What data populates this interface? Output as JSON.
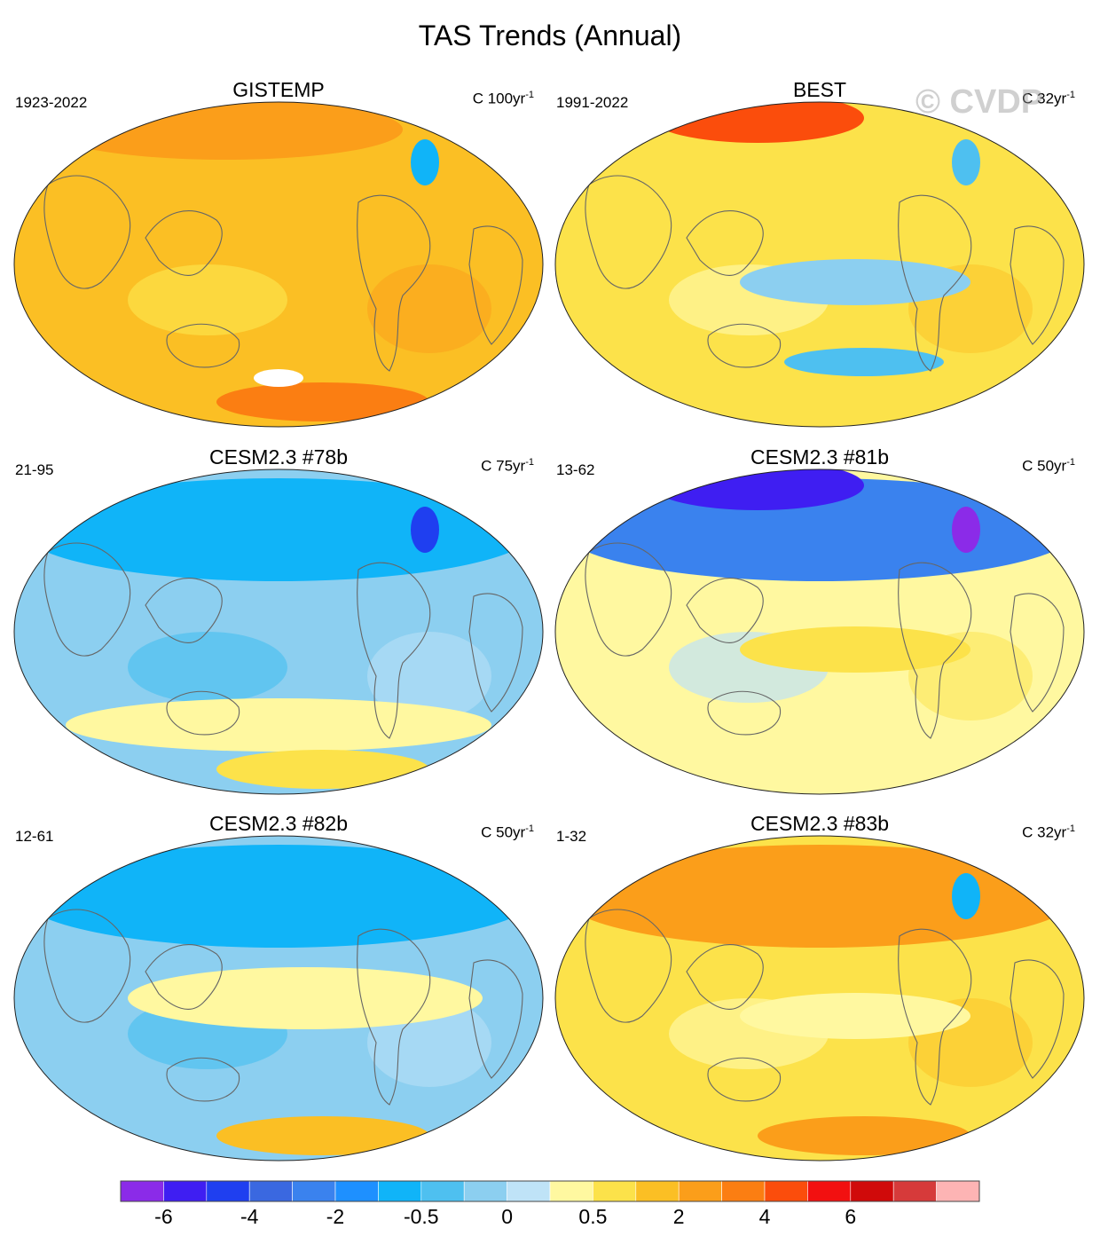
{
  "title": "TAS Trends (Annual)",
  "watermark": "© CVDP",
  "panels": [
    {
      "title": "GISTEMP",
      "period": "1923-2022",
      "units": "C 100yr",
      "units_exp": "-1",
      "dominant_level": 12,
      "features": [
        {
          "pos": "arctic",
          "level": 13
        },
        {
          "pos": "greenland",
          "level": 6
        },
        {
          "pos": "antarctic",
          "level": 14
        },
        {
          "pos": "ant-missing",
          "level": -1
        }
      ]
    },
    {
      "title": "BEST",
      "period": "1991-2022",
      "units": "C 32yr",
      "units_exp": "-1",
      "dominant_level": 11,
      "features": [
        {
          "pos": "siberia",
          "level": 15
        },
        {
          "pos": "tropical-pacific",
          "level": 8
        },
        {
          "pos": "southern-ocean",
          "level": 7
        },
        {
          "pos": "greenland",
          "level": 7
        }
      ]
    },
    {
      "title": "CESM2.3 #78b",
      "period": "21-95",
      "units": "C 75yr",
      "units_exp": "-1",
      "dominant_level": 8,
      "features": [
        {
          "pos": "north",
          "level": 6
        },
        {
          "pos": "greenland",
          "level": 2
        },
        {
          "pos": "southern-band",
          "level": 10
        },
        {
          "pos": "antarctic",
          "level": 11
        }
      ]
    },
    {
      "title": "CESM2.3 #81b",
      "period": "13-62",
      "units": "C 50yr",
      "units_exp": "-1",
      "dominant_level": 10,
      "features": [
        {
          "pos": "north",
          "level": 4
        },
        {
          "pos": "siberia",
          "level": 1
        },
        {
          "pos": "greenland",
          "level": 0
        },
        {
          "pos": "tropical-pacific",
          "level": 11
        }
      ]
    },
    {
      "title": "CESM2.3 #82b",
      "period": "12-61",
      "units": "C 50yr",
      "units_exp": "-1",
      "dominant_level": 8,
      "features": [
        {
          "pos": "north",
          "level": 6
        },
        {
          "pos": "mid-band",
          "level": 10
        },
        {
          "pos": "antarctic",
          "level": 12
        }
      ]
    },
    {
      "title": "CESM2.3 #83b",
      "period": "1-32",
      "units": "C 32yr",
      "units_exp": "-1",
      "dominant_level": 11,
      "features": [
        {
          "pos": "north",
          "level": 13
        },
        {
          "pos": "greenland",
          "level": 6
        },
        {
          "pos": "tropical-pacific",
          "level": 10
        },
        {
          "pos": "antarctic",
          "level": 13
        }
      ]
    }
  ],
  "chart_data": {
    "type": "heatmap",
    "title": "TAS Trends (Annual)",
    "variable": "TAS",
    "colorbar": {
      "tick_labels": [
        "-6",
        "-4",
        "-2",
        "-0.5",
        "0",
        "0.5",
        "2",
        "4",
        "6"
      ],
      "tick_after_bin": [
        1,
        3,
        5,
        7,
        9,
        11,
        13,
        15,
        17
      ],
      "colors": [
        "#8b2be8",
        "#3f1ef2",
        "#1f3ff0",
        "#3a68e0",
        "#3a82ee",
        "#1e90ff",
        "#10b4f8",
        "#4ec0f0",
        "#8ccff0",
        "#bfe3f7",
        "#fff8a0",
        "#fce24a",
        "#fbbf24",
        "#fb9e1a",
        "#fb7e12",
        "#fb4d0c",
        "#f21010",
        "#d00a0a",
        "#d63a3a",
        "#fdb4b4"
      ]
    },
    "panels": [
      {
        "name": "GISTEMP",
        "period": "1923-2022",
        "units": "C 100yr-1"
      },
      {
        "name": "BEST",
        "period": "1991-2022",
        "units": "C 32yr-1"
      },
      {
        "name": "CESM2.3 #78b",
        "period": "21-95",
        "units": "C 75yr-1"
      },
      {
        "name": "CESM2.3 #81b",
        "period": "13-62",
        "units": "C 50yr-1"
      },
      {
        "name": "CESM2.3 #82b",
        "period": "12-61",
        "units": "C 50yr-1"
      },
      {
        "name": "CESM2.3 #83b",
        "period": "1-32",
        "units": "C 32yr-1"
      }
    ]
  }
}
